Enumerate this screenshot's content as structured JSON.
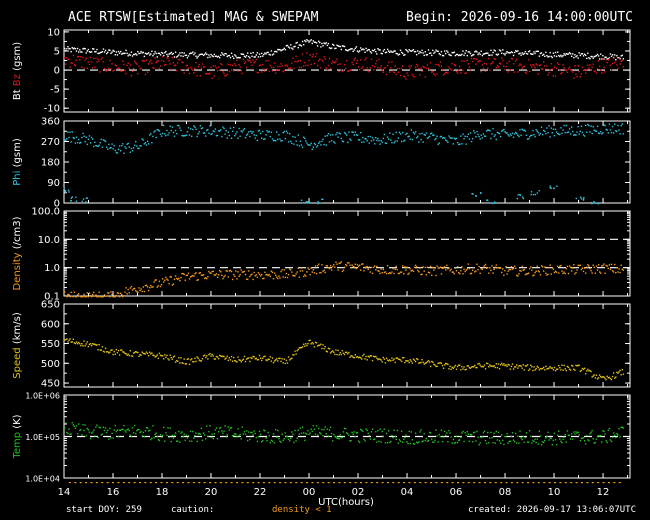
{
  "header": {
    "title": "ACE RTSW[Estimated] MAG & SWEPAM",
    "begin": "Begin: 2026-09-16 14:00:00UTC"
  },
  "footer": {
    "start_doy": "start DOY: 259",
    "caution": "caution:",
    "density_note": "density < 1",
    "created": "created: 2026-09-17 13:06:07UTC"
  },
  "colors": {
    "background": "#000000",
    "axes": "#ffffff",
    "bz": "#e0161b",
    "bt": "#ffffff",
    "phi": "#2ec4df",
    "density": "#f39a1c",
    "speed": "#e0c21a",
    "temp": "#22c021",
    "caution": "#f39a1c"
  },
  "chart_data": [
    {
      "type": "scatter",
      "panel": "mag-field",
      "ylabel_parts": [
        "Bt",
        "Bz",
        "(gsm)"
      ],
      "yticks": [
        "10",
        "5",
        "0",
        "-5",
        "-10"
      ],
      "ylim": [
        -11,
        10.5
      ],
      "reference_lines": [
        0
      ],
      "series": [
        {
          "name": "Bt",
          "color_key": "bt",
          "x": [
            0,
            2,
            4,
            6,
            8,
            10,
            11,
            12,
            13,
            14,
            16,
            18,
            20,
            22,
            22.8
          ],
          "y": [
            5.6,
            4.8,
            4.3,
            4.0,
            4.0,
            7.6,
            6.2,
            5.6,
            4.9,
            4.8,
            4.6,
            4.8,
            4.2,
            3.8,
            3.4
          ]
        },
        {
          "name": "Bz",
          "color_key": "bz",
          "x": [
            0,
            1,
            2,
            3,
            4,
            5,
            6,
            7,
            8,
            9,
            10,
            11,
            12,
            13,
            14,
            15,
            16,
            17,
            18,
            19,
            20,
            21,
            22,
            22.8
          ],
          "y": [
            3.0,
            2.0,
            1.0,
            0.5,
            2.0,
            1.0,
            -0.5,
            1.0,
            1.5,
            1.0,
            3.5,
            1.5,
            2.0,
            1.0,
            -0.5,
            0.5,
            1.0,
            1.5,
            1.5,
            1.0,
            0.5,
            -0.5,
            1.5,
            2.0
          ]
        }
      ]
    },
    {
      "type": "scatter",
      "panel": "phi",
      "ylabel_parts": [
        "Phi",
        "(gsm)"
      ],
      "yticks": [
        "360",
        "270",
        "180",
        "90",
        "0"
      ],
      "ylim": [
        0,
        360
      ],
      "series": [
        {
          "name": "Phi",
          "color_key": "phi",
          "x": [
            0,
            1,
            2,
            3,
            4,
            5,
            6,
            7,
            8,
            9,
            10,
            11,
            12,
            13,
            14,
            15,
            16,
            17,
            18,
            19,
            20,
            21,
            22,
            22.8
          ],
          "y": [
            300,
            280,
            240,
            250,
            320,
            320,
            320,
            310,
            300,
            300,
            260,
            290,
            290,
            280,
            300,
            290,
            270,
            310,
            300,
            310,
            320,
            320,
            330,
            330
          ]
        },
        {
          "name": "Phi-low",
          "color_key": "phi",
          "x": [
            0,
            0.4,
            0.8,
            9.8,
            10.4,
            16.8,
            17.4,
            18.6,
            19.2,
            20.0,
            21.0,
            21.6
          ],
          "y": [
            60,
            20,
            15,
            5,
            10,
            40,
            10,
            30,
            50,
            70,
            20,
            5
          ]
        }
      ]
    },
    {
      "type": "scatter",
      "panel": "density",
      "ylabel_parts": [
        "Density",
        "(/cm3)"
      ],
      "yticks": [
        "100.0",
        "10.0",
        "1.0",
        "0.1"
      ],
      "ylim": [
        0.1,
        100
      ],
      "scale": "log",
      "reference_lines": [
        10,
        1
      ],
      "series": [
        {
          "name": "Density",
          "color_key": "density",
          "x": [
            0,
            2,
            3,
            4,
            5,
            6,
            7,
            8,
            9,
            10,
            11,
            12,
            13,
            14,
            15,
            16,
            17,
            18,
            19,
            20,
            21,
            22,
            22.8
          ],
          "y": [
            0.1,
            0.1,
            0.2,
            0.3,
            0.5,
            0.6,
            0.6,
            0.6,
            0.6,
            0.8,
            1.2,
            1.1,
            0.9,
            0.9,
            0.8,
            0.9,
            1.0,
            0.8,
            0.8,
            0.9,
            0.9,
            1.0,
            0.9
          ]
        }
      ]
    },
    {
      "type": "scatter",
      "panel": "speed",
      "ylabel_parts": [
        "Speed",
        "(km/s)"
      ],
      "yticks": [
        "650",
        "600",
        "550",
        "500",
        "450"
      ],
      "ylim": [
        440,
        650
      ],
      "series": [
        {
          "name": "Speed",
          "color_key": "speed",
          "x": [
            0,
            1,
            2,
            3,
            4,
            5,
            6,
            7,
            8,
            9,
            10,
            11,
            12,
            13,
            14,
            15,
            16,
            17,
            18,
            19,
            20,
            21,
            22,
            22.8
          ],
          "y": [
            560,
            550,
            530,
            525,
            520,
            505,
            520,
            510,
            515,
            505,
            555,
            530,
            520,
            510,
            510,
            500,
            490,
            495,
            495,
            490,
            490,
            490,
            460,
            480
          ]
        }
      ]
    },
    {
      "type": "scatter",
      "panel": "temp",
      "ylabel_parts": [
        "Temp",
        "(K)"
      ],
      "yticks": [
        "1.0E+06",
        "1.0E+05",
        "1.0E+04"
      ],
      "ylim": [
        10000,
        1000000
      ],
      "scale": "log",
      "reference_lines": [
        100000
      ],
      "series": [
        {
          "name": "Temp",
          "color_key": "temp",
          "x": [
            0,
            1,
            2,
            3,
            4,
            5,
            6,
            7,
            8,
            9,
            10,
            11,
            12,
            13,
            14,
            15,
            16,
            17,
            18,
            19,
            20,
            21,
            22,
            22.8
          ],
          "y": [
            160000,
            130000,
            130000,
            140000,
            120000,
            110000,
            130000,
            120000,
            110000,
            100000,
            130000,
            120000,
            110000,
            110000,
            100000,
            100000,
            100000,
            95000,
            95000,
            100000,
            95000,
            100000,
            100000,
            130000
          ]
        }
      ]
    }
  ],
  "x_axis": {
    "label": "UTC(hours)",
    "ticks": [
      "14",
      "16",
      "18",
      "20",
      "22",
      "00",
      "02",
      "04",
      "06",
      "08",
      "10",
      "12"
    ],
    "xlim": [
      0,
      23.1
    ]
  }
}
